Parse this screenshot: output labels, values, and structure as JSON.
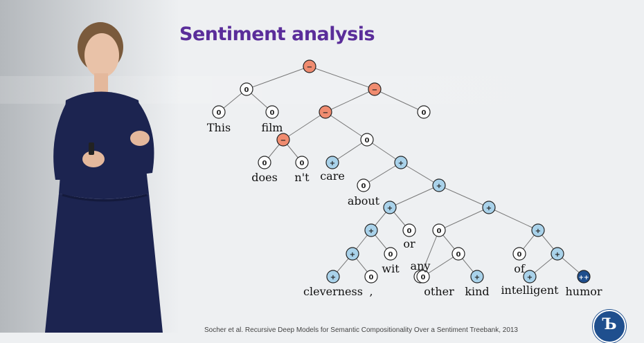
{
  "slide": {
    "title": "Sentiment analysis",
    "footer": "Socher et al. Recursive Deep Models for Semantic Compositionality Over a Sentiment Treebank, 2013"
  },
  "colors": {
    "title": "#5a2d9a",
    "negative": "#f08c70",
    "neutral": "#ffffff",
    "positive": "#a9d2ea",
    "very_positive": "#1f4e8c"
  },
  "tree": {
    "labels": {
      "negative": "−",
      "neutral": "0",
      "positive": "+",
      "very_positive": "++"
    },
    "nodes": [
      {
        "id": "n0",
        "sentiment": "negative"
      },
      {
        "id": "n1",
        "sentiment": "neutral"
      },
      {
        "id": "n2",
        "sentiment": "negative"
      },
      {
        "id": "n3",
        "sentiment": "neutral",
        "word": "This"
      },
      {
        "id": "n4",
        "sentiment": "neutral",
        "word": "film"
      },
      {
        "id": "n5",
        "sentiment": "negative"
      },
      {
        "id": "n6",
        "sentiment": "neutral"
      },
      {
        "id": "n7",
        "sentiment": "negative"
      },
      {
        "id": "n8",
        "sentiment": "neutral"
      },
      {
        "id": "n9",
        "sentiment": "neutral",
        "word": "does"
      },
      {
        "id": "n10",
        "sentiment": "neutral",
        "word": "n't"
      },
      {
        "id": "n11",
        "sentiment": "positive",
        "word": "care"
      },
      {
        "id": "n12",
        "sentiment": "positive"
      },
      {
        "id": "n13",
        "sentiment": "neutral",
        "word": "about"
      },
      {
        "id": "n14",
        "sentiment": "positive"
      },
      {
        "id": "n15",
        "sentiment": "positive"
      },
      {
        "id": "n16",
        "sentiment": "positive"
      },
      {
        "id": "n17",
        "sentiment": "positive"
      },
      {
        "id": "n18",
        "sentiment": "neutral",
        "word": "or"
      },
      {
        "id": "n19",
        "sentiment": "neutral"
      },
      {
        "id": "n20",
        "sentiment": "positive"
      },
      {
        "id": "n21",
        "sentiment": "positive"
      },
      {
        "id": "n22",
        "sentiment": "neutral",
        "word": "wit"
      },
      {
        "id": "n23",
        "sentiment": "neutral",
        "word": "any"
      },
      {
        "id": "n24",
        "sentiment": "neutral"
      },
      {
        "id": "n25",
        "sentiment": "neutral",
        "word": "of"
      },
      {
        "id": "n26",
        "sentiment": "positive"
      },
      {
        "id": "n27",
        "sentiment": "positive",
        "word": "cleverness"
      },
      {
        "id": "n28",
        "sentiment": "neutral",
        "word": ","
      },
      {
        "id": "n29",
        "sentiment": "neutral",
        "word": "other"
      },
      {
        "id": "n30",
        "sentiment": "positive",
        "word": "kind"
      },
      {
        "id": "n31",
        "sentiment": "positive",
        "word": "intelligent"
      },
      {
        "id": "n32",
        "sentiment": "very_positive",
        "word": "humor"
      }
    ],
    "edges": [
      [
        "n0",
        "n1"
      ],
      [
        "n0",
        "n2"
      ],
      [
        "n1",
        "n3"
      ],
      [
        "n1",
        "n4"
      ],
      [
        "n2",
        "n5"
      ],
      [
        "n2",
        "n6"
      ],
      [
        "n5",
        "n7"
      ],
      [
        "n5",
        "n8"
      ],
      [
        "n7",
        "n9"
      ],
      [
        "n7",
        "n10"
      ],
      [
        "n8",
        "n11"
      ],
      [
        "n8",
        "n12"
      ],
      [
        "n12",
        "n13"
      ],
      [
        "n12",
        "n14"
      ],
      [
        "n14",
        "n15"
      ],
      [
        "n14",
        "n16"
      ],
      [
        "n15",
        "n17"
      ],
      [
        "n15",
        "n18"
      ],
      [
        "n16",
        "n19"
      ],
      [
        "n16",
        "n20"
      ],
      [
        "n17",
        "n21"
      ],
      [
        "n17",
        "n22"
      ],
      [
        "n19",
        "n23"
      ],
      [
        "n19",
        "n24"
      ],
      [
        "n20",
        "n25"
      ],
      [
        "n20",
        "n26"
      ],
      [
        "n21",
        "n27"
      ],
      [
        "n21",
        "n28"
      ],
      [
        "n24",
        "n29"
      ],
      [
        "n24",
        "n30"
      ],
      [
        "n26",
        "n31"
      ],
      [
        "n26",
        "n32"
      ]
    ]
  }
}
